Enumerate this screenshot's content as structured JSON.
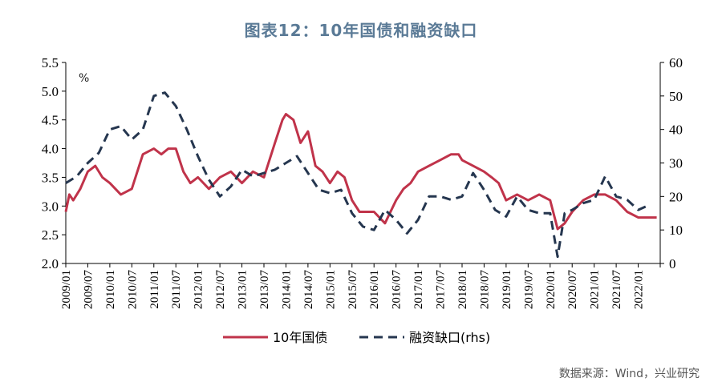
{
  "chart_data": {
    "type": "line",
    "title": "图表12：10年国债和融资缺口",
    "unit_label": "%",
    "source": "数据来源：Wind，兴业研究",
    "x_ticks": [
      "2009/01",
      "2009/07",
      "2010/01",
      "2010/07",
      "2011/01",
      "2011/07",
      "2012/01",
      "2012/07",
      "2013/01",
      "2013/07",
      "2014/01",
      "2014/07",
      "2015/01",
      "2015/07",
      "2016/01",
      "2016/07",
      "2017/01",
      "2017/07",
      "2018/01",
      "2018/07",
      "2019/01",
      "2019/07",
      "2020/01",
      "2020/07",
      "2021/01",
      "2021/07",
      "2022/01"
    ],
    "y_left": {
      "min": 2.0,
      "max": 5.5,
      "ticks": [
        "2.0",
        "2.5",
        "3.0",
        "3.5",
        "4.0",
        "4.5",
        "5.0",
        "5.5"
      ]
    },
    "y_right": {
      "min": 0,
      "max": 60,
      "ticks": [
        "0",
        "10",
        "20",
        "30",
        "40",
        "50",
        "60"
      ]
    },
    "legend_position": "bottom",
    "grid": false,
    "series": [
      {
        "name": "10年国债",
        "axis": "left",
        "color": "#c0334a",
        "dash": "solid",
        "x": [
          2009.0,
          2009.08,
          2009.17,
          2009.33,
          2009.5,
          2009.67,
          2009.83,
          2010.0,
          2010.25,
          2010.5,
          2010.75,
          2011.0,
          2011.17,
          2011.33,
          2011.5,
          2011.67,
          2011.83,
          2012.0,
          2012.25,
          2012.5,
          2012.75,
          2013.0,
          2013.25,
          2013.5,
          2013.75,
          2013.92,
          2014.0,
          2014.17,
          2014.33,
          2014.5,
          2014.67,
          2014.83,
          2015.0,
          2015.17,
          2015.33,
          2015.5,
          2015.67,
          2015.83,
          2016.0,
          2016.25,
          2016.5,
          2016.67,
          2016.83,
          2017.0,
          2017.25,
          2017.5,
          2017.75,
          2017.92,
          2018.0,
          2018.25,
          2018.5,
          2018.67,
          2018.83,
          2019.0,
          2019.25,
          2019.5,
          2019.75,
          2020.0,
          2020.17,
          2020.33,
          2020.5,
          2020.75,
          2021.0,
          2021.25,
          2021.5,
          2021.75,
          2022.0,
          2022.25,
          2022.42
        ],
        "values": [
          2.9,
          3.2,
          3.1,
          3.3,
          3.6,
          3.7,
          3.5,
          3.4,
          3.2,
          3.3,
          3.9,
          4.0,
          3.9,
          4.0,
          4.0,
          3.6,
          3.4,
          3.5,
          3.3,
          3.5,
          3.6,
          3.4,
          3.6,
          3.5,
          4.1,
          4.5,
          4.6,
          4.5,
          4.1,
          4.3,
          3.7,
          3.6,
          3.4,
          3.6,
          3.5,
          3.1,
          2.9,
          2.9,
          2.9,
          2.7,
          3.1,
          3.3,
          3.4,
          3.6,
          3.7,
          3.8,
          3.9,
          3.9,
          3.8,
          3.7,
          3.6,
          3.5,
          3.4,
          3.1,
          3.2,
          3.1,
          3.2,
          3.1,
          2.6,
          2.7,
          2.9,
          3.1,
          3.2,
          3.2,
          3.1,
          2.9,
          2.8,
          2.8,
          2.8
        ]
      },
      {
        "name": "融资缺口(rhs)",
        "axis": "right",
        "color": "#25364f",
        "dash": "dashed",
        "x": [
          2009.0,
          2009.25,
          2009.5,
          2009.75,
          2010.0,
          2010.25,
          2010.5,
          2010.75,
          2011.0,
          2011.25,
          2011.5,
          2011.75,
          2012.0,
          2012.25,
          2012.5,
          2012.75,
          2013.0,
          2013.25,
          2013.5,
          2013.75,
          2014.0,
          2014.25,
          2014.5,
          2014.75,
          2015.0,
          2015.25,
          2015.5,
          2015.75,
          2016.0,
          2016.25,
          2016.5,
          2016.75,
          2017.0,
          2017.25,
          2017.5,
          2017.75,
          2018.0,
          2018.25,
          2018.5,
          2018.75,
          2019.0,
          2019.25,
          2019.5,
          2019.75,
          2020.0,
          2020.17,
          2020.33,
          2020.5,
          2020.75,
          2021.0,
          2021.25,
          2021.5,
          2021.75,
          2022.0,
          2022.17
        ],
        "values": [
          24,
          26,
          30,
          33,
          40,
          41,
          37,
          40,
          50,
          51,
          47,
          40,
          32,
          25,
          20,
          23,
          28,
          26,
          27,
          28,
          30,
          32,
          27,
          22,
          21,
          22,
          15,
          11,
          10,
          16,
          13,
          9,
          13,
          20,
          20,
          19,
          20,
          27,
          22,
          16,
          14,
          20,
          16,
          15,
          15,
          2,
          15,
          16,
          18,
          19,
          26,
          20,
          19,
          16,
          17
        ]
      }
    ]
  }
}
